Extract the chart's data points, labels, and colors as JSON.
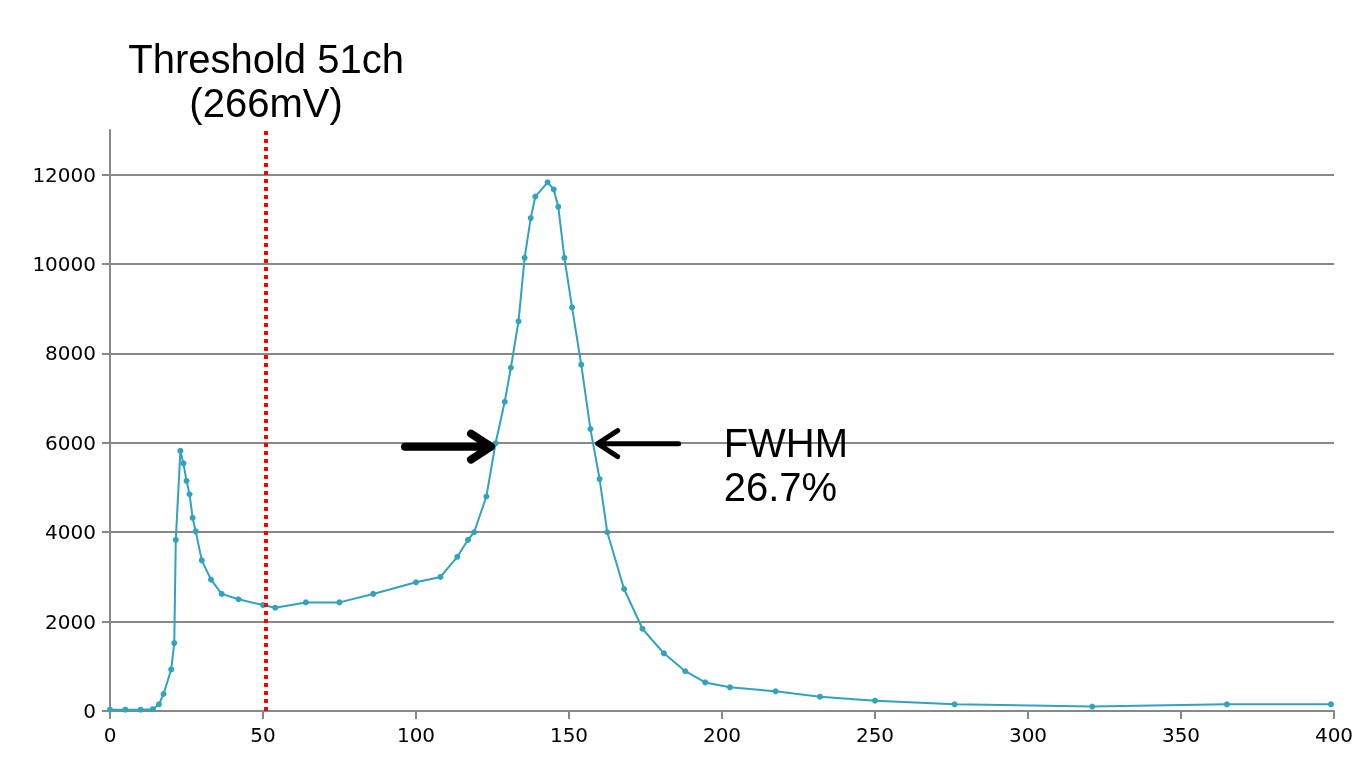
{
  "chart_data": {
    "type": "line",
    "x": [
      0,
      5,
      10,
      14,
      16,
      17.5,
      20,
      21,
      21.5,
      23,
      24,
      25,
      26,
      27,
      28,
      30,
      33,
      36.5,
      42,
      50,
      54,
      64,
      75,
      86,
      100,
      108,
      113.5,
      117,
      119,
      123,
      126,
      129,
      131,
      133.5,
      135.5,
      137.5,
      139,
      143,
      145,
      146.5,
      148.5,
      151,
      154,
      157,
      160,
      162.5,
      168,
      174,
      181,
      188,
      194.5,
      202.6,
      217.5,
      232,
      250,
      276,
      321,
      365,
      399
    ],
    "series": [
      {
        "color": "#31a2bf",
        "values": [
          30,
          30,
          30,
          40,
          150,
          380,
          930,
          1520,
          3830,
          5820,
          5540,
          5150,
          4850,
          4320,
          4020,
          3370,
          2940,
          2620,
          2500,
          2370,
          2310,
          2430,
          2430,
          2620,
          2880,
          3000,
          3450,
          3830,
          4000,
          4800,
          5990,
          6920,
          7680,
          8720,
          10140,
          11030,
          11510,
          11830,
          11670,
          11280,
          10140,
          9030,
          7750,
          6310,
          5190,
          4000,
          2730,
          1840,
          1290,
          890,
          640,
          530,
          440,
          320,
          230,
          150,
          100,
          150,
          150
        ]
      }
    ],
    "xlim": [
      0,
      400
    ],
    "xticks": [
      0,
      50,
      100,
      150,
      200,
      250,
      300,
      350,
      400
    ],
    "ylim": [
      0,
      13000
    ],
    "yticks": [
      0,
      2000,
      4000,
      6000,
      8000,
      10000,
      12000
    ],
    "grid": "y",
    "marker": "circle",
    "line_style": "solid",
    "ref_lines": [
      {
        "axis": "x",
        "value": 51,
        "label": "Threshold 51ch\n(266mV)",
        "color": "#ff0000",
        "line_style": "dotted"
      }
    ],
    "annotations": [
      "FWHM\n26.7%"
    ]
  }
}
